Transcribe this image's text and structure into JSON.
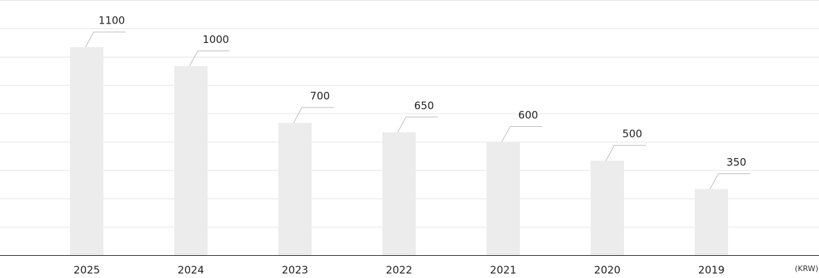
{
  "chart_data": {
    "type": "bar",
    "unit_label": "(KRW)",
    "categories": [
      "2025",
      "2024",
      "2023",
      "2022",
      "2021",
      "2020",
      "2019"
    ],
    "values": [
      1100,
      1000,
      700,
      650,
      600,
      500,
      350
    ],
    "color": "#ececec",
    "ylim": [
      0,
      1350
    ],
    "yticks": [
      0,
      150,
      300,
      450,
      600,
      750,
      900,
      1050,
      1200,
      1350
    ],
    "grid": true
  }
}
